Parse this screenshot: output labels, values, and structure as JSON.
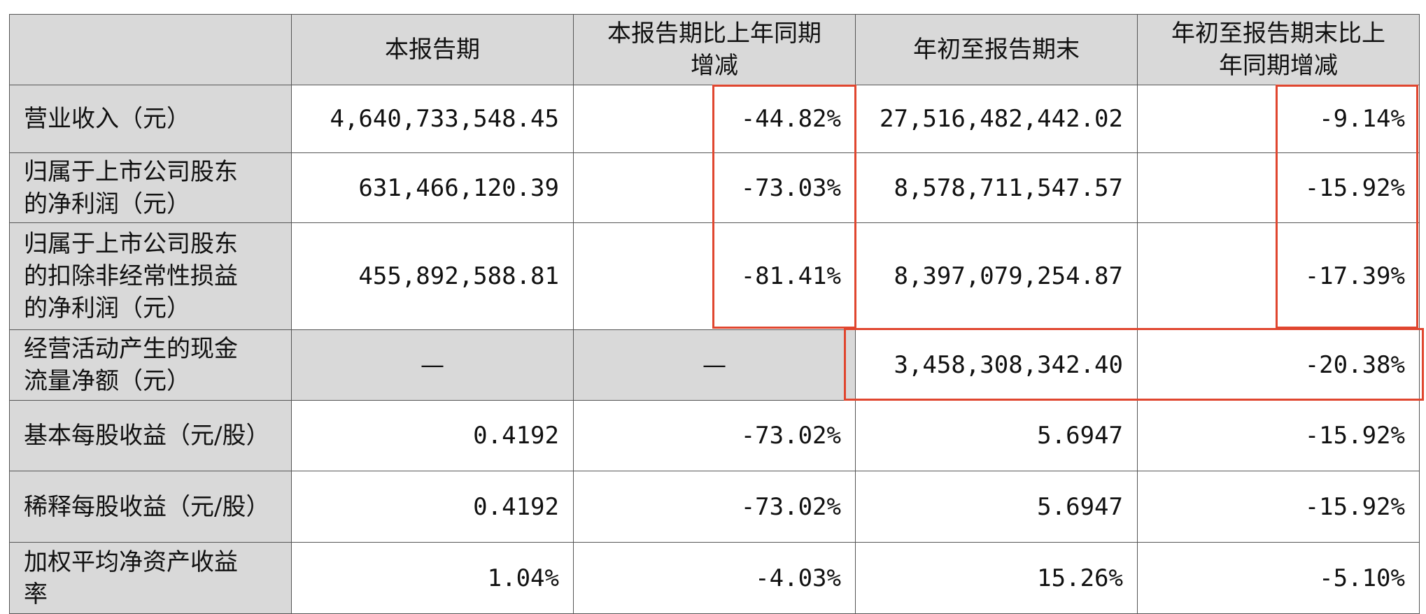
{
  "table": {
    "header": [
      "本报告期",
      "本报告期比上年同期增减",
      "年初至报告期末",
      "年初至报告期末比上年同期增减"
    ],
    "rows": [
      [
        "营业收入（元）",
        "4,640,733,548.45",
        "-44.82%",
        "27,516,482,442.02",
        "-9.14%"
      ],
      [
        "归属于上市公司股东的净利润（元）",
        "631,466,120.39",
        "-73.03%",
        "8,578,711,547.57",
        "-15.92%"
      ],
      [
        "归属于上市公司股东的扣除非经常性损益的净利润（元）",
        "455,892,588.81",
        "-81.41%",
        "8,397,079,254.87",
        "-17.39%"
      ],
      [
        "经营活动产生的现金流量净额（元）",
        "—",
        "—",
        "3,458,308,342.40",
        "-20.38%"
      ],
      [
        "基本每股收益（元/股）",
        "0.4192",
        "-73.02%",
        "5.6947",
        "-15.92%"
      ],
      [
        "稀释每股收益（元/股）",
        "0.4192",
        "-73.02%",
        "5.6947",
        "-15.92%"
      ],
      [
        "加权平均净资产收益率",
        "1.04%",
        "-4.03%",
        "15.26%",
        "-5.10%"
      ]
    ]
  }
}
